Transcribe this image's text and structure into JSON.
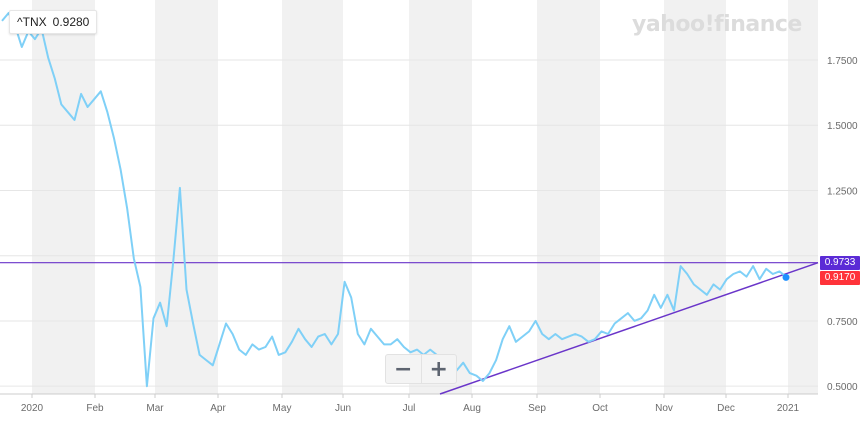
{
  "ticker": {
    "symbol": "^TNX",
    "value": "0.9280"
  },
  "logo_text": "yahoo!finance",
  "zoom": {
    "minus": "−",
    "plus": "+"
  },
  "badges": {
    "trendline": {
      "text": "0.9733",
      "color": "#5b2bd6"
    },
    "last_price": {
      "text": "0.9170",
      "color": "#ff333a"
    }
  },
  "colors": {
    "line": "#7fd0f7",
    "trendline": "#6a35c9",
    "band": "#f1f1f1",
    "grid": "#e6e6e6"
  },
  "chart_data": {
    "type": "line",
    "title": "",
    "xlabel": "",
    "ylabel": "",
    "ylim": [
      0.47,
      1.98
    ],
    "y_ticks": [
      {
        "value": 0.5,
        "label": "0.5000"
      },
      {
        "value": 0.75,
        "label": "0.7500"
      },
      {
        "value": 1.0,
        "label": ""
      },
      {
        "value": 1.25,
        "label": "1.2500"
      },
      {
        "value": 1.5,
        "label": "1.5000"
      },
      {
        "value": 1.75,
        "label": "1.7500"
      }
    ],
    "x_ticks": [
      "2020",
      "Feb",
      "Mar",
      "Apr",
      "May",
      "Jun",
      "Jul",
      "Aug",
      "Sep",
      "Oct",
      "Nov",
      "Dec",
      "2021"
    ],
    "series": [
      {
        "values": [
          1.9,
          1.93,
          1.88,
          1.8,
          1.86,
          1.83,
          1.87,
          1.76,
          1.68,
          1.58,
          1.55,
          1.52,
          1.62,
          1.57,
          1.6,
          1.63,
          1.55,
          1.45,
          1.33,
          1.18,
          0.99,
          0.88,
          0.5,
          0.76,
          0.82,
          0.73,
          0.98,
          1.26,
          0.87,
          0.74,
          0.62,
          0.6,
          0.58,
          0.66,
          0.74,
          0.7,
          0.64,
          0.62,
          0.66,
          0.64,
          0.65,
          0.69,
          0.62,
          0.63,
          0.67,
          0.72,
          0.68,
          0.65,
          0.69,
          0.7,
          0.66,
          0.7,
          0.9,
          0.84,
          0.7,
          0.66,
          0.72,
          0.69,
          0.66,
          0.66,
          0.68,
          0.65,
          0.63,
          0.64,
          0.62,
          0.64,
          0.62,
          0.6,
          0.59,
          0.56,
          0.59,
          0.55,
          0.54,
          0.52,
          0.55,
          0.6,
          0.68,
          0.73,
          0.67,
          0.69,
          0.71,
          0.75,
          0.7,
          0.68,
          0.7,
          0.68,
          0.69,
          0.7,
          0.69,
          0.67,
          0.68,
          0.71,
          0.7,
          0.74,
          0.76,
          0.78,
          0.75,
          0.76,
          0.79,
          0.85,
          0.8,
          0.85,
          0.79,
          0.96,
          0.93,
          0.89,
          0.87,
          0.85,
          0.89,
          0.87,
          0.91,
          0.93,
          0.94,
          0.92,
          0.96,
          0.91,
          0.95,
          0.93,
          0.94,
          0.92
        ]
      }
    ],
    "trendline": {
      "start_value": 0.47,
      "end_value": 0.9733
    },
    "horizontal_line": 0.9733,
    "last_value": 0.917,
    "grid": true,
    "legend": "none"
  }
}
